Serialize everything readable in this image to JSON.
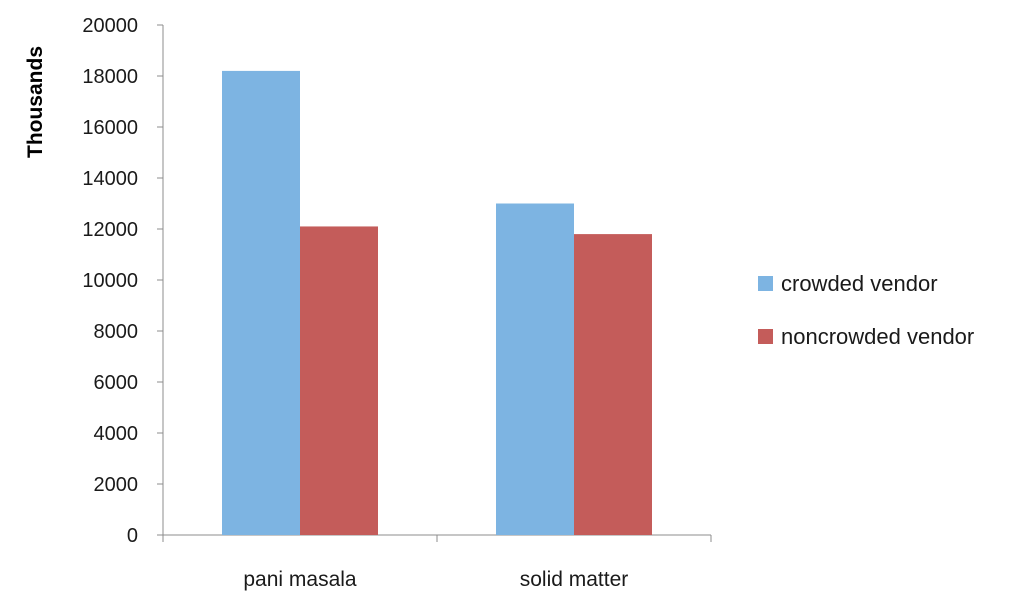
{
  "chart_data": {
    "type": "bar",
    "title": "",
    "xlabel": "",
    "ylabel": "Thousands",
    "categories": [
      "pani masala",
      "solid matter"
    ],
    "series": [
      {
        "name": "crowded vendor",
        "values": [
          18200,
          13000
        ],
        "color": "#7db4e2"
      },
      {
        "name": "noncrowded vendor",
        "values": [
          12100,
          11800
        ],
        "color": "#c45c5a"
      }
    ],
    "ylim": [
      0,
      20000
    ],
    "yticks": [
      0,
      2000,
      4000,
      6000,
      8000,
      10000,
      12000,
      14000,
      16000,
      18000,
      20000
    ],
    "grid": false,
    "legend_position": "right"
  }
}
